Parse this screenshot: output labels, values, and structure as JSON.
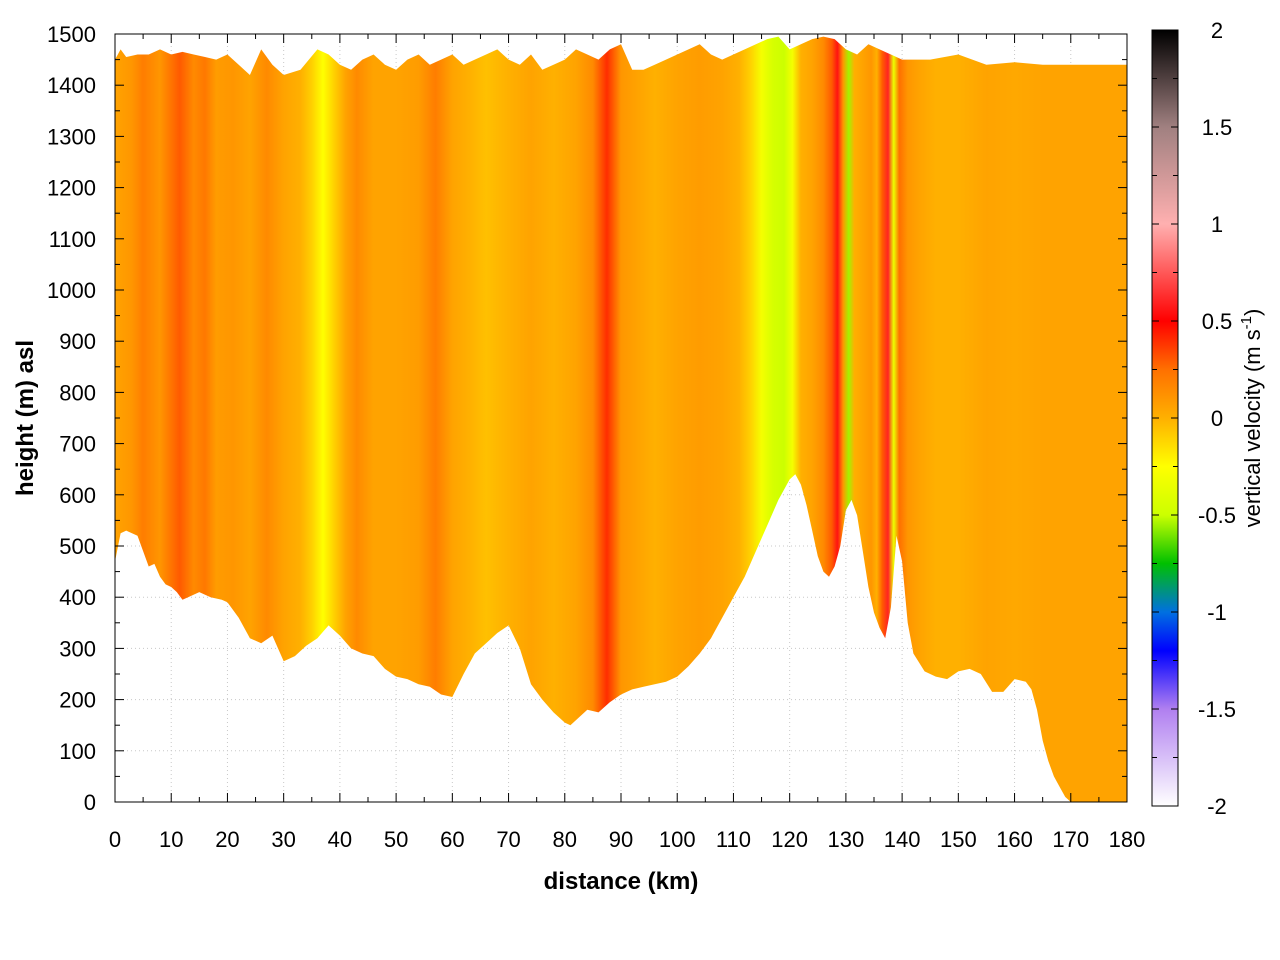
{
  "chart_data": {
    "type": "heatmap",
    "title": "",
    "xlabel": "distance (km)",
    "ylabel": "height (m) asl",
    "xlim": [
      0,
      180
    ],
    "ylim": [
      0,
      1500
    ],
    "x_ticks": [
      0,
      10,
      20,
      30,
      40,
      50,
      60,
      70,
      80,
      90,
      100,
      110,
      120,
      130,
      140,
      150,
      160,
      170,
      180
    ],
    "y_ticks": [
      0,
      100,
      200,
      300,
      400,
      500,
      600,
      700,
      800,
      900,
      1000,
      1100,
      1200,
      1300,
      1400,
      1500
    ],
    "grid": true,
    "colorbar": {
      "label_main": "vertical velocity (m s",
      "label_sup": "-1",
      "label_end": ")",
      "range": [
        -2,
        2
      ],
      "ticks": [
        -2,
        -1.5,
        -1,
        -0.5,
        0,
        0.5,
        1,
        1.5,
        2
      ],
      "stops": [
        {
          "value": -2.0,
          "color": "#ffffff"
        },
        {
          "value": -1.5,
          "color": "#b07ff0"
        },
        {
          "value": -1.2,
          "color": "#0000ff"
        },
        {
          "value": -1.0,
          "color": "#0070e0"
        },
        {
          "value": -0.75,
          "color": "#00c000"
        },
        {
          "value": -0.5,
          "color": "#ccff00"
        },
        {
          "value": -0.25,
          "color": "#ffff00"
        },
        {
          "value": 0.0,
          "color": "#ffb000"
        },
        {
          "value": 0.25,
          "color": "#ff7000"
        },
        {
          "value": 0.5,
          "color": "#ff0000"
        },
        {
          "value": 1.0,
          "color": "#ffb0b0"
        },
        {
          "value": 1.5,
          "color": "#a08080"
        },
        {
          "value": 2.0,
          "color": "#000000"
        }
      ]
    },
    "terrain": {
      "distance_km": [
        0,
        1,
        2,
        4,
        5,
        6,
        7,
        8,
        9,
        10,
        11,
        12,
        13,
        15,
        17,
        19,
        20,
        22,
        24,
        26,
        28,
        30,
        32,
        34,
        36,
        38,
        40,
        42,
        44,
        46,
        48,
        50,
        52,
        54,
        56,
        58,
        60,
        62,
        64,
        66,
        68,
        70,
        72,
        74,
        76,
        78,
        80,
        81,
        82,
        84,
        86,
        88,
        90,
        92,
        94,
        96,
        98,
        100,
        102,
        104,
        106,
        108,
        110,
        112,
        114,
        116,
        118,
        120,
        121,
        122,
        123,
        124,
        125,
        126,
        127,
        128,
        129,
        130,
        131,
        132,
        133,
        134,
        135,
        136,
        137,
        138,
        139,
        140,
        141,
        142,
        144,
        146,
        148,
        150,
        152,
        154,
        156,
        158,
        160,
        162,
        163,
        164,
        165,
        166,
        167,
        168,
        169,
        170,
        180
      ],
      "height_m": [
        470,
        525,
        530,
        520,
        490,
        460,
        465,
        440,
        425,
        420,
        410,
        395,
        400,
        410,
        400,
        395,
        390,
        360,
        320,
        310,
        325,
        275,
        285,
        305,
        320,
        345,
        325,
        300,
        290,
        285,
        260,
        245,
        240,
        230,
        225,
        210,
        205,
        250,
        290,
        310,
        330,
        345,
        300,
        230,
        200,
        175,
        155,
        150,
        160,
        180,
        175,
        195,
        210,
        220,
        225,
        230,
        235,
        245,
        265,
        290,
        320,
        360,
        400,
        440,
        490,
        540,
        590,
        630,
        640,
        620,
        580,
        530,
        480,
        450,
        440,
        460,
        500,
        570,
        590,
        560,
        490,
        420,
        370,
        340,
        320,
        380,
        520,
        470,
        350,
        290,
        255,
        245,
        240,
        255,
        260,
        250,
        215,
        215,
        240,
        235,
        220,
        180,
        120,
        80,
        50,
        30,
        10,
        0,
        0
      ]
    },
    "top_edge": {
      "distance_km": [
        0,
        1,
        2,
        4,
        6,
        8,
        10,
        12,
        14,
        16,
        18,
        20,
        22,
        24,
        26,
        28,
        30,
        33,
        36,
        38,
        40,
        42,
        44,
        46,
        48,
        50,
        52,
        54,
        56,
        58,
        60,
        62,
        64,
        66,
        68,
        70,
        72,
        74,
        76,
        78,
        80,
        82,
        84,
        86,
        88,
        90,
        92,
        94,
        96,
        98,
        100,
        102,
        104,
        106,
        108,
        110,
        112,
        114,
        116,
        118,
        120,
        122,
        124,
        126,
        128,
        130,
        132,
        134,
        136,
        138,
        140,
        145,
        150,
        155,
        160,
        165,
        168,
        170,
        180
      ],
      "height_m": [
        1450,
        1470,
        1455,
        1460,
        1460,
        1470,
        1460,
        1465,
        1460,
        1455,
        1450,
        1460,
        1440,
        1420,
        1470,
        1440,
        1420,
        1430,
        1470,
        1460,
        1440,
        1430,
        1450,
        1460,
        1440,
        1430,
        1450,
        1460,
        1440,
        1450,
        1460,
        1440,
        1450,
        1460,
        1470,
        1450,
        1440,
        1460,
        1430,
        1440,
        1450,
        1470,
        1460,
        1450,
        1470,
        1480,
        1430,
        1430,
        1440,
        1450,
        1460,
        1470,
        1480,
        1460,
        1450,
        1460,
        1470,
        1480,
        1490,
        1495,
        1470,
        1480,
        1490,
        1495,
        1490,
        1470,
        1460,
        1480,
        1470,
        1460,
        1450,
        1450,
        1460,
        1440,
        1445,
        1440,
        1440,
        1440,
        1440
      ]
    },
    "velocity_profile": {
      "distance_km": [
        0,
        3,
        5,
        8,
        11.5,
        14,
        16,
        18,
        21,
        24,
        27,
        30,
        33,
        35,
        37,
        39,
        41,
        43,
        46,
        50,
        54,
        57,
        60,
        63,
        66,
        70,
        74,
        78,
        82,
        85,
        87.5,
        90,
        93,
        96,
        100,
        104,
        108,
        111,
        113,
        115,
        117,
        119,
        120.5,
        122,
        124,
        126,
        127.5,
        128.5,
        129.5,
        130.5,
        131.5,
        133,
        134.5,
        135.5,
        136.5,
        137.5,
        138.5,
        139.5,
        141,
        143,
        146,
        150,
        155,
        160,
        165,
        170,
        175,
        180
      ],
      "w_ms": [
        0.05,
        0.1,
        0.2,
        0.1,
        0.3,
        0.15,
        0.22,
        0.08,
        0.1,
        0.05,
        0.15,
        0.05,
        0.0,
        -0.1,
        -0.25,
        -0.1,
        0.05,
        0.15,
        0.05,
        0.05,
        0.08,
        0.2,
        0.05,
        0.0,
        -0.05,
        0.0,
        0.05,
        0.0,
        0.05,
        0.15,
        0.4,
        0.1,
        0.05,
        0.0,
        0.05,
        0.08,
        0.05,
        0.0,
        -0.1,
        -0.3,
        -0.45,
        -0.5,
        -0.3,
        0.0,
        0.05,
        0.15,
        0.3,
        0.55,
        0.1,
        -0.55,
        0.0,
        0.05,
        0.1,
        0.0,
        0.3,
        0.6,
        -0.35,
        0.25,
        0.1,
        0.05,
        0.0,
        0.0,
        0.05,
        0.03,
        0.05,
        0.05,
        0.05,
        0.05
      ]
    }
  }
}
